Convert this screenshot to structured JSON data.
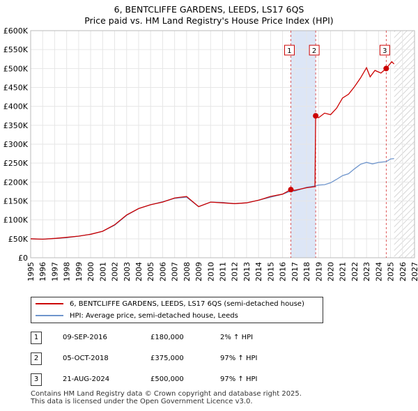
{
  "title_line1": "6, BENTCLIFFE GARDENS, LEEDS, LS17 6QS",
  "title_line2": "Price paid vs. HM Land Registry's House Price Index (HPI)",
  "colors": {
    "property": "#cc0000",
    "hpi": "#6f95cc",
    "shade": "#dde6f6",
    "marker_line": "#cc0000"
  },
  "legend": {
    "property_label": "6, BENTCLIFFE GARDENS, LEEDS, LS17 6QS (semi-detached house)",
    "hpi_label": "HPI: Average price, semi-detached house, Leeds"
  },
  "sales": [
    {
      "num": "1",
      "date": "09-SEP-2016",
      "price": "£180,000",
      "hpi_change": "2% ↑ HPI"
    },
    {
      "num": "2",
      "date": "05-OCT-2018",
      "price": "£375,000",
      "hpi_change": "97% ↑ HPI"
    },
    {
      "num": "3",
      "date": "21-AUG-2024",
      "price": "£500,000",
      "hpi_change": "97% ↑ HPI"
    }
  ],
  "footer": {
    "line1": "Contains HM Land Registry data © Crown copyright and database right 2025.",
    "line2": "This data is licensed under the Open Government Licence v3.0."
  },
  "chart_data": {
    "type": "line",
    "title": "6, BENTCLIFFE GARDENS, LEEDS, LS17 6QS",
    "subtitle": "Price paid vs. HM Land Registry's House Price Index (HPI)",
    "xlim": [
      1995,
      2027
    ],
    "ylim": [
      0,
      600000
    ],
    "x_ticks": [
      1995,
      1996,
      1997,
      1998,
      1999,
      2000,
      2001,
      2002,
      2003,
      2004,
      2005,
      2006,
      2007,
      2008,
      2009,
      2010,
      2011,
      2012,
      2013,
      2014,
      2015,
      2016,
      2017,
      2018,
      2019,
      2020,
      2021,
      2022,
      2023,
      2024,
      2025,
      2026,
      2027
    ],
    "y_ticks": [
      0,
      50000,
      100000,
      150000,
      200000,
      250000,
      300000,
      350000,
      400000,
      450000,
      500000,
      550000,
      600000
    ],
    "y_tick_labels": [
      "£0",
      "£50K",
      "£100K",
      "£150K",
      "£200K",
      "£250K",
      "£300K",
      "£350K",
      "£400K",
      "£450K",
      "£500K",
      "£550K",
      "£600K"
    ],
    "shaded_range": [
      2016.69,
      2018.76
    ],
    "hatched_from": 2025.3,
    "sale_markers": [
      {
        "label": "1",
        "x": 2016.69,
        "y": 180000
      },
      {
        "label": "2",
        "x": 2018.76,
        "y": 375000
      },
      {
        "label": "3",
        "x": 2024.64,
        "y": 500000
      }
    ],
    "series": [
      {
        "name": "6, BENTCLIFFE GARDENS, LEEDS, LS17 6QS (semi-detached house)",
        "points": [
          [
            1995,
            50000
          ],
          [
            1996,
            49000
          ],
          [
            1997,
            51000
          ],
          [
            1998,
            54000
          ],
          [
            1999,
            57000
          ],
          [
            2000,
            62000
          ],
          [
            2001,
            70000
          ],
          [
            2002,
            87000
          ],
          [
            2003,
            113000
          ],
          [
            2004,
            130000
          ],
          [
            2005,
            140000
          ],
          [
            2006,
            147000
          ],
          [
            2007,
            158000
          ],
          [
            2008,
            162000
          ],
          [
            2009,
            135000
          ],
          [
            2010,
            147000
          ],
          [
            2011,
            145000
          ],
          [
            2012,
            143000
          ],
          [
            2013,
            145000
          ],
          [
            2014,
            152000
          ],
          [
            2015,
            162000
          ],
          [
            2016,
            168000
          ],
          [
            2016.69,
            180000
          ],
          [
            2017,
            178000
          ],
          [
            2018,
            185000
          ],
          [
            2018.7,
            188000
          ],
          [
            2018.76,
            375000
          ],
          [
            2019,
            370000
          ],
          [
            2019.5,
            382000
          ],
          [
            2020,
            378000
          ],
          [
            2020.5,
            395000
          ],
          [
            2021,
            422000
          ],
          [
            2021.5,
            432000
          ],
          [
            2022,
            452000
          ],
          [
            2022.5,
            475000
          ],
          [
            2023,
            502000
          ],
          [
            2023.3,
            478000
          ],
          [
            2023.7,
            495000
          ],
          [
            2024.2,
            488000
          ],
          [
            2024.64,
            500000
          ],
          [
            2024.9,
            510000
          ],
          [
            2025.1,
            518000
          ],
          [
            2025.3,
            512000
          ]
        ]
      },
      {
        "name": "HPI: Average price, semi-detached house, Leeds",
        "points": [
          [
            1995,
            50000
          ],
          [
            1996,
            49000
          ],
          [
            1997,
            51000
          ],
          [
            1998,
            53000
          ],
          [
            1999,
            57000
          ],
          [
            2000,
            62000
          ],
          [
            2001,
            70000
          ],
          [
            2002,
            86000
          ],
          [
            2003,
            112000
          ],
          [
            2004,
            130000
          ],
          [
            2005,
            140000
          ],
          [
            2006,
            148000
          ],
          [
            2007,
            157000
          ],
          [
            2008,
            160000
          ],
          [
            2009,
            135000
          ],
          [
            2010,
            147000
          ],
          [
            2011,
            146000
          ],
          [
            2012,
            143000
          ],
          [
            2013,
            145000
          ],
          [
            2014,
            152000
          ],
          [
            2015,
            160000
          ],
          [
            2016,
            168000
          ],
          [
            2016.69,
            176000
          ],
          [
            2017,
            176000
          ],
          [
            2018,
            186000
          ],
          [
            2018.76,
            190000
          ],
          [
            2019,
            192000
          ],
          [
            2019.5,
            193000
          ],
          [
            2020,
            198000
          ],
          [
            2020.5,
            207000
          ],
          [
            2021,
            217000
          ],
          [
            2021.5,
            222000
          ],
          [
            2022,
            235000
          ],
          [
            2022.5,
            247000
          ],
          [
            2023,
            252000
          ],
          [
            2023.5,
            248000
          ],
          [
            2024,
            252000
          ],
          [
            2024.64,
            254000
          ],
          [
            2025,
            261000
          ],
          [
            2025.3,
            262000
          ]
        ]
      }
    ]
  }
}
